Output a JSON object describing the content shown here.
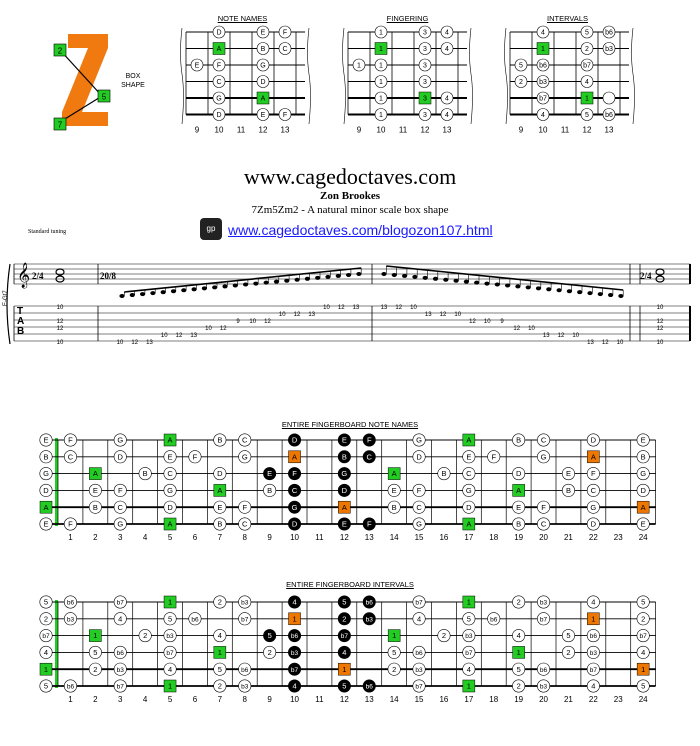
{
  "header": {
    "site": "www.cagedoctaves.com",
    "author": "Zon Brookes",
    "subtitle": "7Zm5Zm2 - A natural minor scale box shape",
    "tuning": "Standard tuning",
    "link": "www.cagedoctaves.com/blogozon107.html",
    "gp_icon": "gp"
  },
  "logo": {
    "letter": "Z",
    "markers": [
      "2",
      "5",
      "7"
    ],
    "caption_line1": "BOX",
    "caption_line2": "SHAPE"
  },
  "diagrams": {
    "note_names_title": "NOTE NAMES",
    "fingering_title": "FINGERING",
    "intervals_title": "INTERVALS",
    "fret_numbers": [
      "9",
      "10",
      "11",
      "12",
      "13"
    ]
  },
  "tab": {
    "track_label": "E-Gt7",
    "time_sig": "2/4",
    "time_sig_mid": "20/8",
    "tab_letters": [
      "T",
      "A",
      "B"
    ],
    "strings": [
      {
        "left": "10",
        "right": "10",
        "run": "10 – 12 – 13 – 13 – 12 – 10"
      },
      {
        "left": "",
        "right": "",
        "run": "10 – 12 – 13 – 13 – 12 – 10 – 9 – 12 – 10"
      },
      {
        "left": "12",
        "right": "12",
        "run": "9 – 10 – 12 – 12 – 10 – 9"
      },
      {
        "left": "12",
        "right": "12",
        "run": "10 – 12 – 12 – 10"
      },
      {
        "left": "",
        "right": "",
        "run": "10 – 12 – 13 – 13 – 12 – 10"
      },
      {
        "left": "10",
        "right": "10",
        "run": "10 – 12 – 13 – 13 – 12 – 10"
      }
    ]
  },
  "fretboard_notes": {
    "title": "ENTIRE FINGERBOARD NOTE NAMES",
    "fret_numbers": [
      "1",
      "2",
      "3",
      "4",
      "5",
      "6",
      "7",
      "8",
      "9",
      "10",
      "11",
      "12",
      "13",
      "14",
      "15",
      "16",
      "17",
      "18",
      "19",
      "20",
      "21",
      "22",
      "23",
      "24"
    ]
  },
  "fretboard_intervals": {
    "title": "ENTIRE FINGERBOARD INTERVALS",
    "fret_numbers": [
      "1",
      "2",
      "3",
      "4",
      "5",
      "6",
      "7",
      "8",
      "9",
      "10",
      "11",
      "12",
      "13",
      "14",
      "15",
      "16",
      "17",
      "18",
      "19",
      "20",
      "21",
      "22",
      "23",
      "24"
    ]
  },
  "colors": {
    "green": "#22cc22",
    "orange": "#ee7700",
    "black": "#000000",
    "link": "#1a1aff"
  }
}
